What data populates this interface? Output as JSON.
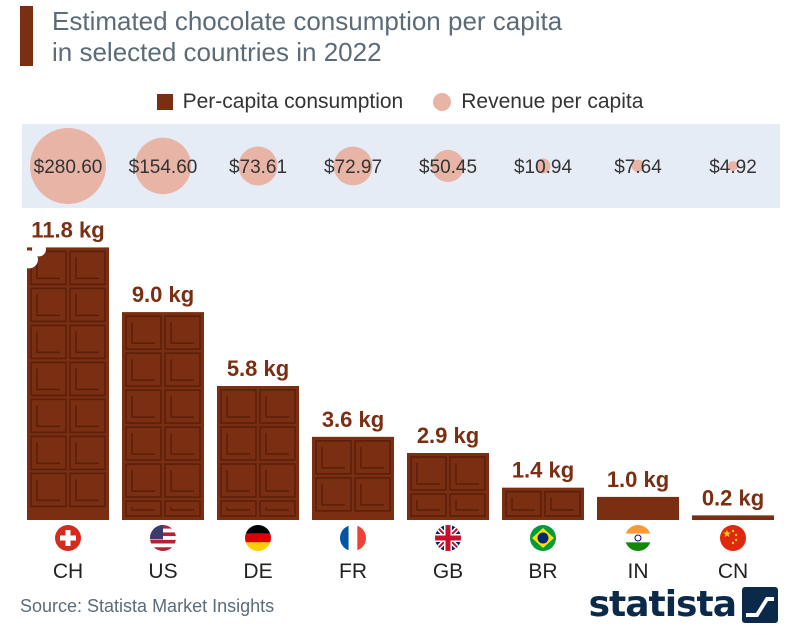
{
  "header": {
    "title_line1": "Estimated chocolate consumption per capita",
    "title_line2": "in selected countries in 2022"
  },
  "legend": {
    "consumption_label": "Per-capita consumption",
    "revenue_label": "Revenue per capita"
  },
  "colors": {
    "chocolate": "#7a2e12",
    "chocolate_dark": "#5a1f0a",
    "revenue_bubble": "#e8b4a6",
    "band": "#e6ecf5",
    "label_text": "#7a2e12"
  },
  "chart_data": {
    "type": "bar",
    "title": "Estimated chocolate consumption per capita in selected countries in 2022",
    "categories": [
      "CH",
      "US",
      "DE",
      "FR",
      "GB",
      "BR",
      "IN",
      "CN"
    ],
    "series": [
      {
        "name": "Per-capita consumption",
        "values": [
          11.8,
          9.0,
          5.8,
          3.6,
          2.9,
          1.4,
          1.0,
          0.2
        ],
        "labels": [
          "11.8 kg",
          "9.0 kg",
          "5.8 kg",
          "3.6 kg",
          "2.9 kg",
          "1.4 kg",
          "1.0 kg",
          "0.2 kg"
        ]
      },
      {
        "name": "Revenue per capita",
        "values": [
          280.6,
          154.6,
          73.61,
          72.97,
          50.45,
          10.94,
          7.64,
          4.92
        ],
        "labels": [
          "$280.60",
          "$154.60",
          "$73.61",
          "$72.97",
          "$50.45",
          "$10.94",
          "$7.64",
          "$4.92"
        ]
      }
    ],
    "flags": [
      "switzerland-flag",
      "usa-flag",
      "germany-flag",
      "france-flag",
      "uk-flag",
      "brazil-flag",
      "india-flag",
      "china-flag"
    ]
  },
  "footer": {
    "source": "Source: Statista Market Insights",
    "logo_text": "statista"
  }
}
